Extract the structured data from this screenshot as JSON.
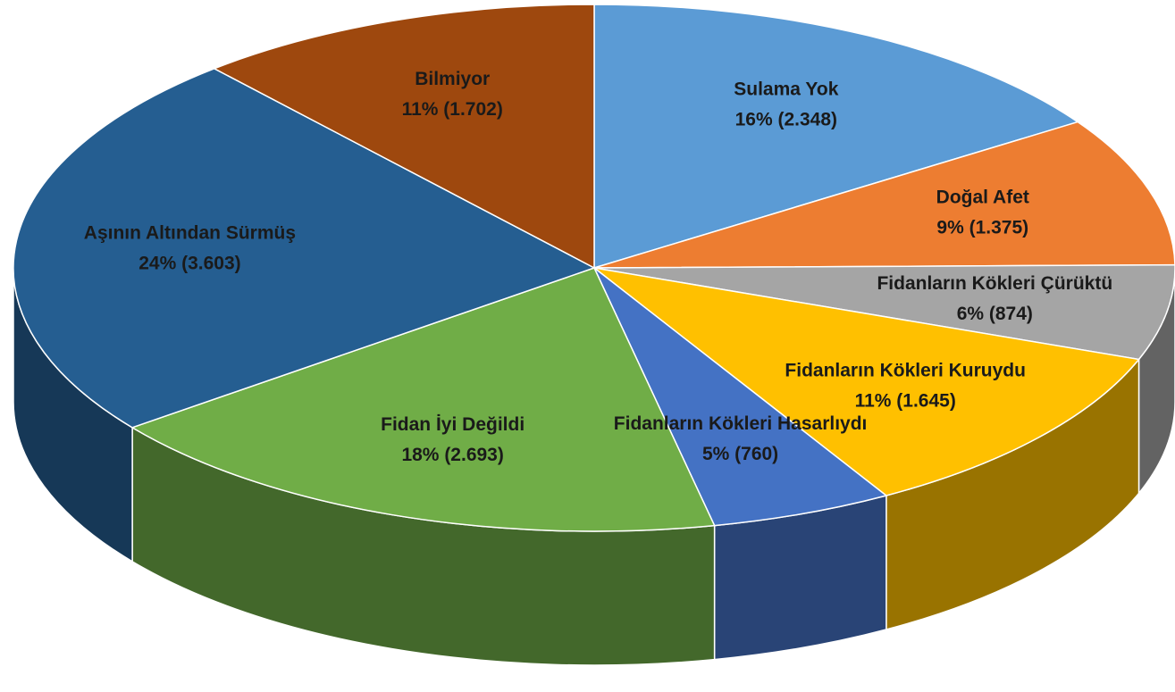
{
  "chart_data": {
    "type": "pie3d",
    "categories": [
      "Sulama Yok",
      "Doğal Afet",
      "Fidanların Kökleri Çürüktü",
      "Fidanların Kökleri Kuruydu",
      "Fidanların Kökleri Hasarlıydı",
      "Fidan İyi Değildi",
      "Aşının Altından Sürmüş",
      "Bilmiyor"
    ],
    "values": [
      2348,
      1375,
      874,
      1645,
      760,
      2693,
      3603,
      1702
    ],
    "value_labels": [
      "16% (2.348)",
      "9% (1.375)",
      "6% (874)",
      "11% (1.645)",
      "5% (760)",
      "18% (2.693)",
      "24% (3.603)",
      "11% (1.702)"
    ],
    "colors": [
      "#5b9bd5",
      "#ed7d31",
      "#a5a5a5",
      "#ffc000",
      "#4472c4",
      "#70ad47",
      "#255e91",
      "#9e480e"
    ]
  }
}
